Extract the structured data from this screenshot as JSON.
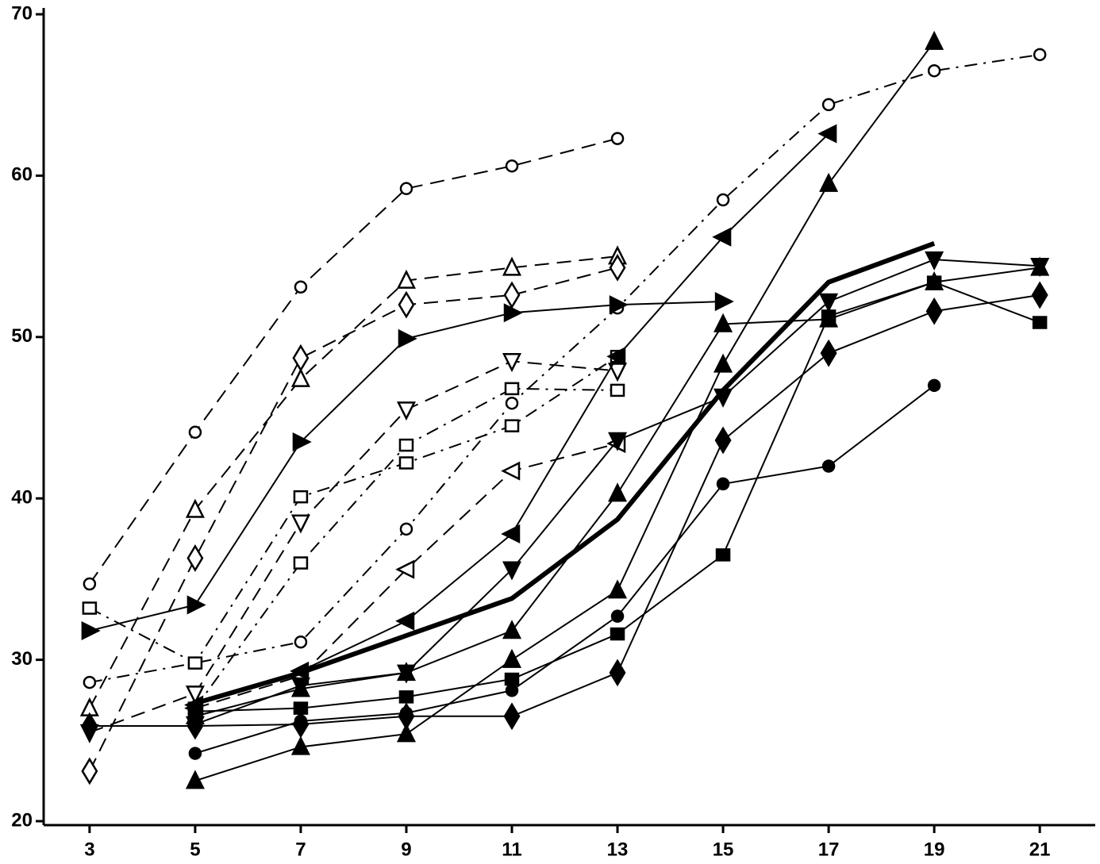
{
  "chart_data": {
    "type": "line",
    "xlim": [
      2.13,
      22.05
    ],
    "ylim": [
      20,
      70
    ],
    "xticks": [
      3,
      5,
      7,
      9,
      11,
      13,
      15,
      17,
      19,
      21
    ],
    "yticks": [
      20,
      30,
      40,
      50,
      60,
      70
    ],
    "series": [
      {
        "color": "#000",
        "marker": "circle",
        "filled": false,
        "dash": "dashed",
        "x": [
          3,
          5,
          7,
          9,
          11,
          13
        ],
        "values": [
          34.7,
          44.1,
          53.1,
          59.2,
          60.6,
          62.3
        ]
      },
      {
        "color": "#000",
        "marker": "circle",
        "filled": false,
        "dash": "dashdot",
        "x": [
          3,
          5,
          7,
          9,
          11,
          13,
          15,
          17,
          19,
          21
        ],
        "values": [
          28.6,
          29.8,
          31.1,
          38.1,
          45.9,
          51.8,
          58.5,
          64.4,
          66.5,
          67.5
        ]
      },
      {
        "color": "#000",
        "marker": "triangle-up",
        "filled": false,
        "dash": "dashed",
        "x": [
          3,
          5,
          7,
          9,
          11,
          13
        ],
        "values": [
          27,
          39.3,
          47.4,
          53.5,
          54.3,
          55
        ]
      },
      {
        "color": "#000",
        "marker": "diamond",
        "filled": false,
        "dash": "dashed",
        "x": [
          3,
          5,
          7,
          9,
          11,
          13
        ],
        "values": [
          23.1,
          36.3,
          48.7,
          52,
          52.6,
          54.3
        ]
      },
      {
        "color": "#000",
        "marker": "triangle-right",
        "filled": true,
        "dash": "solid",
        "x": [
          3,
          5,
          7,
          9,
          11,
          13,
          15
        ],
        "values": [
          31.8,
          33.4,
          43.5,
          49.9,
          51.5,
          52,
          52.2
        ]
      },
      {
        "color": "#000",
        "marker": "triangle-down",
        "filled": false,
        "dash": "dashed",
        "x": [
          3,
          5,
          7,
          9,
          11,
          13
        ],
        "values": [
          25.5,
          27.9,
          38.5,
          45.5,
          48.5,
          47.9
        ]
      },
      {
        "color": "#000",
        "marker": "square",
        "filled": false,
        "dash": "dashdot",
        "x": [
          3,
          5,
          7,
          9,
          11,
          13
        ],
        "values": [
          33.2,
          29.8,
          40.1,
          42.2,
          44.5,
          48.8
        ]
      },
      {
        "color": "#000",
        "marker": "square",
        "filled": false,
        "dash": "dashdot",
        "x": [
          5,
          7,
          9,
          11,
          13
        ],
        "values": [
          27,
          36,
          43.3,
          46.8,
          46.7
        ]
      },
      {
        "color": "#000",
        "marker": "triangle-left",
        "filled": false,
        "dash": "dashed",
        "x": [
          5,
          7,
          9,
          11,
          13
        ],
        "values": [
          27,
          29,
          35.6,
          41.7,
          43.4
        ]
      },
      {
        "color": "#000",
        "marker": "triangle-left",
        "filled": true,
        "dash": "solid",
        "x": [
          5,
          7,
          9,
          11,
          13,
          15,
          17
        ],
        "values": [
          27.2,
          29.3,
          32.4,
          37.8,
          48.8,
          56.2,
          62.6
        ]
      },
      {
        "color": "#000",
        "marker": "none",
        "filled": true,
        "dash": "thick",
        "x": [
          5,
          7,
          9,
          11,
          13,
          15,
          17,
          19
        ],
        "values": [
          27.3,
          29.2,
          31.5,
          33.8,
          38.7,
          46.7,
          53.4,
          55.8
        ]
      },
      {
        "color": "#000",
        "marker": "triangle-up",
        "filled": true,
        "dash": "solid",
        "x": [
          5,
          7,
          9,
          11,
          13,
          15,
          17,
          19
        ],
        "values": [
          22.5,
          24.6,
          25.4,
          30,
          34.3,
          48.3,
          59.5,
          68.3
        ]
      },
      {
        "color": "#000",
        "marker": "triangle-up",
        "filled": true,
        "dash": "solid",
        "x": [
          5,
          7,
          9,
          11,
          13,
          15,
          17,
          19,
          21
        ],
        "values": [
          26.5,
          28.2,
          29.2,
          31.8,
          40.3,
          50.8,
          51.1,
          53.4,
          54.3
        ]
      },
      {
        "color": "#000",
        "marker": "triangle-down",
        "filled": true,
        "dash": "solid",
        "x": [
          5,
          7,
          9,
          11,
          13,
          15,
          17,
          19,
          21
        ],
        "values": [
          26,
          28.4,
          29.2,
          35.6,
          43.6,
          46.3,
          52.2,
          54.8,
          54.4
        ]
      },
      {
        "color": "#000",
        "marker": "diamond",
        "filled": true,
        "dash": "solid",
        "x": [
          3,
          5,
          7,
          9,
          11,
          13,
          15,
          17,
          19,
          21
        ],
        "values": [
          25.9,
          25.9,
          26,
          26.5,
          26.5,
          29.2,
          43.6,
          49,
          51.6,
          52.6
        ]
      },
      {
        "color": "#000",
        "marker": "circle",
        "filled": true,
        "dash": "solid",
        "x": [
          5,
          7,
          9,
          11,
          13,
          15,
          17,
          19
        ],
        "values": [
          24.2,
          26.2,
          26.7,
          28.1,
          32.7,
          40.9,
          42,
          47
        ]
      },
      {
        "color": "#000",
        "marker": "square",
        "filled": true,
        "dash": "solid",
        "x": [
          5,
          7,
          9,
          11,
          13,
          15,
          17,
          19,
          21
        ],
        "values": [
          26.8,
          27,
          27.7,
          28.8,
          31.6,
          36.5,
          51.3,
          53.4,
          50.9
        ]
      }
    ]
  }
}
